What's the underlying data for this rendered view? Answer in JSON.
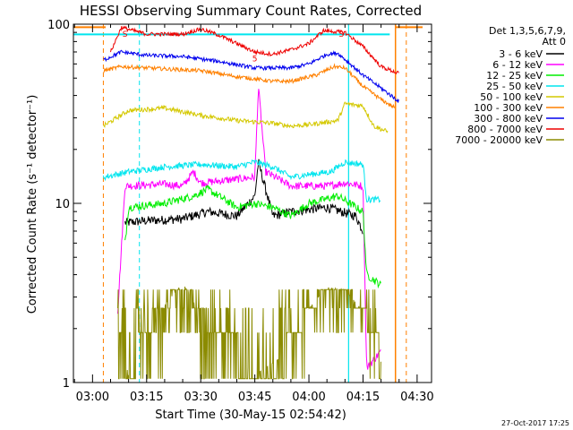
{
  "chart_data": {
    "type": "line",
    "title": "HESSI Observing Summary Count Rates, Corrected",
    "xlabel": "Start Time (30-May-15 02:54:42)",
    "ylabel": "Corrected Count Rate (s⁻¹ detector⁻¹)",
    "yscale": "log",
    "xlim": [
      "02:54:42",
      "04:34:00"
    ],
    "ylim": [
      1,
      100
    ],
    "grid": false,
    "legend_position": "top-right",
    "x_ticks": [
      "03:00",
      "03:15",
      "03:30",
      "03:45",
      "04:00",
      "04:15",
      "04:30"
    ],
    "y_ticks": [
      "1",
      "10",
      "100"
    ],
    "legend_header": [
      "Det 1,3,5,6,7,9,",
      "Att 0"
    ],
    "timestamp": "27-Oct-2017 17:25",
    "series": [
      {
        "name": "3 - 6 keV",
        "color": "#000000",
        "points": [
          [
            "03:09",
            7.8
          ],
          [
            "03:15",
            8
          ],
          [
            "03:25",
            8.2
          ],
          [
            "03:32",
            9
          ],
          [
            "03:40",
            8.5
          ],
          [
            "03:45",
            11
          ],
          [
            "03:46",
            17
          ],
          [
            "03:48",
            12
          ],
          [
            "03:50",
            8.5
          ],
          [
            "03:55",
            9
          ],
          [
            "04:05",
            9.5
          ],
          [
            "04:13",
            8.5
          ],
          [
            "04:15",
            7
          ]
        ]
      },
      {
        "name": "6 - 12 keV",
        "color": "#ff00ff",
        "points": [
          [
            "03:07",
            2.5
          ],
          [
            "03:09",
            12.5
          ],
          [
            "03:20",
            12.8
          ],
          [
            "03:25",
            12.5
          ],
          [
            "03:28",
            15
          ],
          [
            "03:30",
            13
          ],
          [
            "03:45",
            14
          ],
          [
            "03:46",
            45
          ],
          [
            "03:48",
            15
          ],
          [
            "03:55",
            12.5
          ],
          [
            "04:05",
            12.5
          ],
          [
            "04:10",
            13
          ],
          [
            "04:15",
            12.5
          ],
          [
            "04:16",
            1.2
          ],
          [
            "04:20",
            1.5
          ]
        ]
      },
      {
        "name": "12 - 25 keV",
        "color": "#00ee00",
        "points": [
          [
            "03:09",
            6
          ],
          [
            "03:10",
            9.5
          ],
          [
            "03:20",
            10
          ],
          [
            "03:28",
            11
          ],
          [
            "03:32",
            12
          ],
          [
            "03:40",
            9.5
          ],
          [
            "03:45",
            10
          ],
          [
            "03:50",
            9.5
          ],
          [
            "03:55",
            8.5
          ],
          [
            "04:00",
            10
          ],
          [
            "04:08",
            11
          ],
          [
            "04:15",
            9
          ],
          [
            "04:16",
            4
          ],
          [
            "04:20",
            3.5
          ]
        ]
      },
      {
        "name": "25 - 50 keV",
        "color": "#00e5ee",
        "points": [
          [
            "03:03",
            14
          ],
          [
            "03:10",
            15
          ],
          [
            "03:20",
            16
          ],
          [
            "03:30",
            16.5
          ],
          [
            "03:40",
            16
          ],
          [
            "03:45",
            17
          ],
          [
            "03:50",
            16
          ],
          [
            "03:55",
            14
          ],
          [
            "04:00",
            14.5
          ],
          [
            "04:06",
            15
          ],
          [
            "04:10",
            17
          ],
          [
            "04:15",
            16.5
          ],
          [
            "04:16",
            10.5
          ],
          [
            "04:20",
            10.5
          ]
        ]
      },
      {
        "name": "50 - 100 keV",
        "color": "#d4c800",
        "points": [
          [
            "03:03",
            27
          ],
          [
            "03:10",
            33
          ],
          [
            "03:20",
            34
          ],
          [
            "03:30",
            31
          ],
          [
            "03:40",
            29
          ],
          [
            "03:50",
            28
          ],
          [
            "03:55",
            27
          ],
          [
            "04:00",
            27.5
          ],
          [
            "04:08",
            29
          ],
          [
            "04:10",
            36
          ],
          [
            "04:15",
            35
          ],
          [
            "04:18",
            27
          ],
          [
            "04:22",
            25
          ]
        ]
      },
      {
        "name": "100 - 300 keV",
        "color": "#ff8000",
        "points": [
          [
            "03:03",
            55
          ],
          [
            "03:08",
            58
          ],
          [
            "03:15",
            57
          ],
          [
            "03:30",
            55
          ],
          [
            "03:40",
            51
          ],
          [
            "03:50",
            48
          ],
          [
            "03:55",
            48
          ],
          [
            "04:02",
            52
          ],
          [
            "04:07",
            58
          ],
          [
            "04:10",
            57
          ],
          [
            "04:15",
            45
          ],
          [
            "04:20",
            38
          ],
          [
            "04:24",
            34
          ]
        ]
      },
      {
        "name": "300 - 800 keV",
        "color": "#0000ee",
        "points": [
          [
            "03:03",
            63
          ],
          [
            "03:08",
            70
          ],
          [
            "03:15",
            67
          ],
          [
            "03:25",
            66
          ],
          [
            "03:35",
            62
          ],
          [
            "03:45",
            57
          ],
          [
            "03:55",
            57
          ],
          [
            "04:00",
            60
          ],
          [
            "04:05",
            68
          ],
          [
            "04:08",
            69
          ],
          [
            "04:15",
            52
          ],
          [
            "04:20",
            44
          ],
          [
            "04:25",
            37
          ]
        ]
      },
      {
        "name": "800 - 7000 keV",
        "color": "#ee0000",
        "points": [
          [
            "03:05",
            70
          ],
          [
            "03:08",
            96
          ],
          [
            "03:15",
            88
          ],
          [
            "03:25",
            88
          ],
          [
            "03:30",
            94
          ],
          [
            "03:35",
            87
          ],
          [
            "03:45",
            70
          ],
          [
            "03:50",
            68
          ],
          [
            "03:55",
            72
          ],
          [
            "04:00",
            78
          ],
          [
            "04:04",
            92
          ],
          [
            "04:10",
            90
          ],
          [
            "04:15",
            75
          ],
          [
            "04:20",
            58
          ],
          [
            "04:25",
            53
          ]
        ]
      },
      {
        "name": "7000 - 20000 keV",
        "color": "#8b8b00",
        "points": [
          [
            "03:07",
            1.9
          ],
          [
            "03:10",
            1.1
          ],
          [
            "03:15",
            1.9
          ],
          [
            "03:20",
            2.7
          ],
          [
            "03:25",
            3.6
          ],
          [
            "03:30",
            2.4
          ],
          [
            "03:35",
            1.9
          ],
          [
            "03:45",
            1.1
          ],
          [
            "03:55",
            1.5
          ],
          [
            "04:00",
            2.6
          ],
          [
            "04:05",
            3.4
          ],
          [
            "04:10",
            3.3
          ],
          [
            "04:15",
            2.5
          ],
          [
            "04:20",
            1.3
          ]
        ]
      }
    ],
    "attenuator_markers": {
      "color": "#00e5ee",
      "values": [
        [
          "03:14",
          94
        ],
        [
          "04:10",
          94
        ]
      ]
    },
    "vertical_markers_dashed": {
      "color": "#ff8000",
      "times": [
        "03:03",
        "04:27"
      ]
    },
    "vertical_markers_solid": {
      "color": "#ff8000",
      "times": [
        "04:24"
      ]
    },
    "vertical_markers_cyan": {
      "color": "#00e5ee",
      "times_dashed": [
        "03:13"
      ],
      "times_solid": [
        "04:11"
      ]
    },
    "annotations": [
      "5",
      "S",
      "S"
    ]
  }
}
